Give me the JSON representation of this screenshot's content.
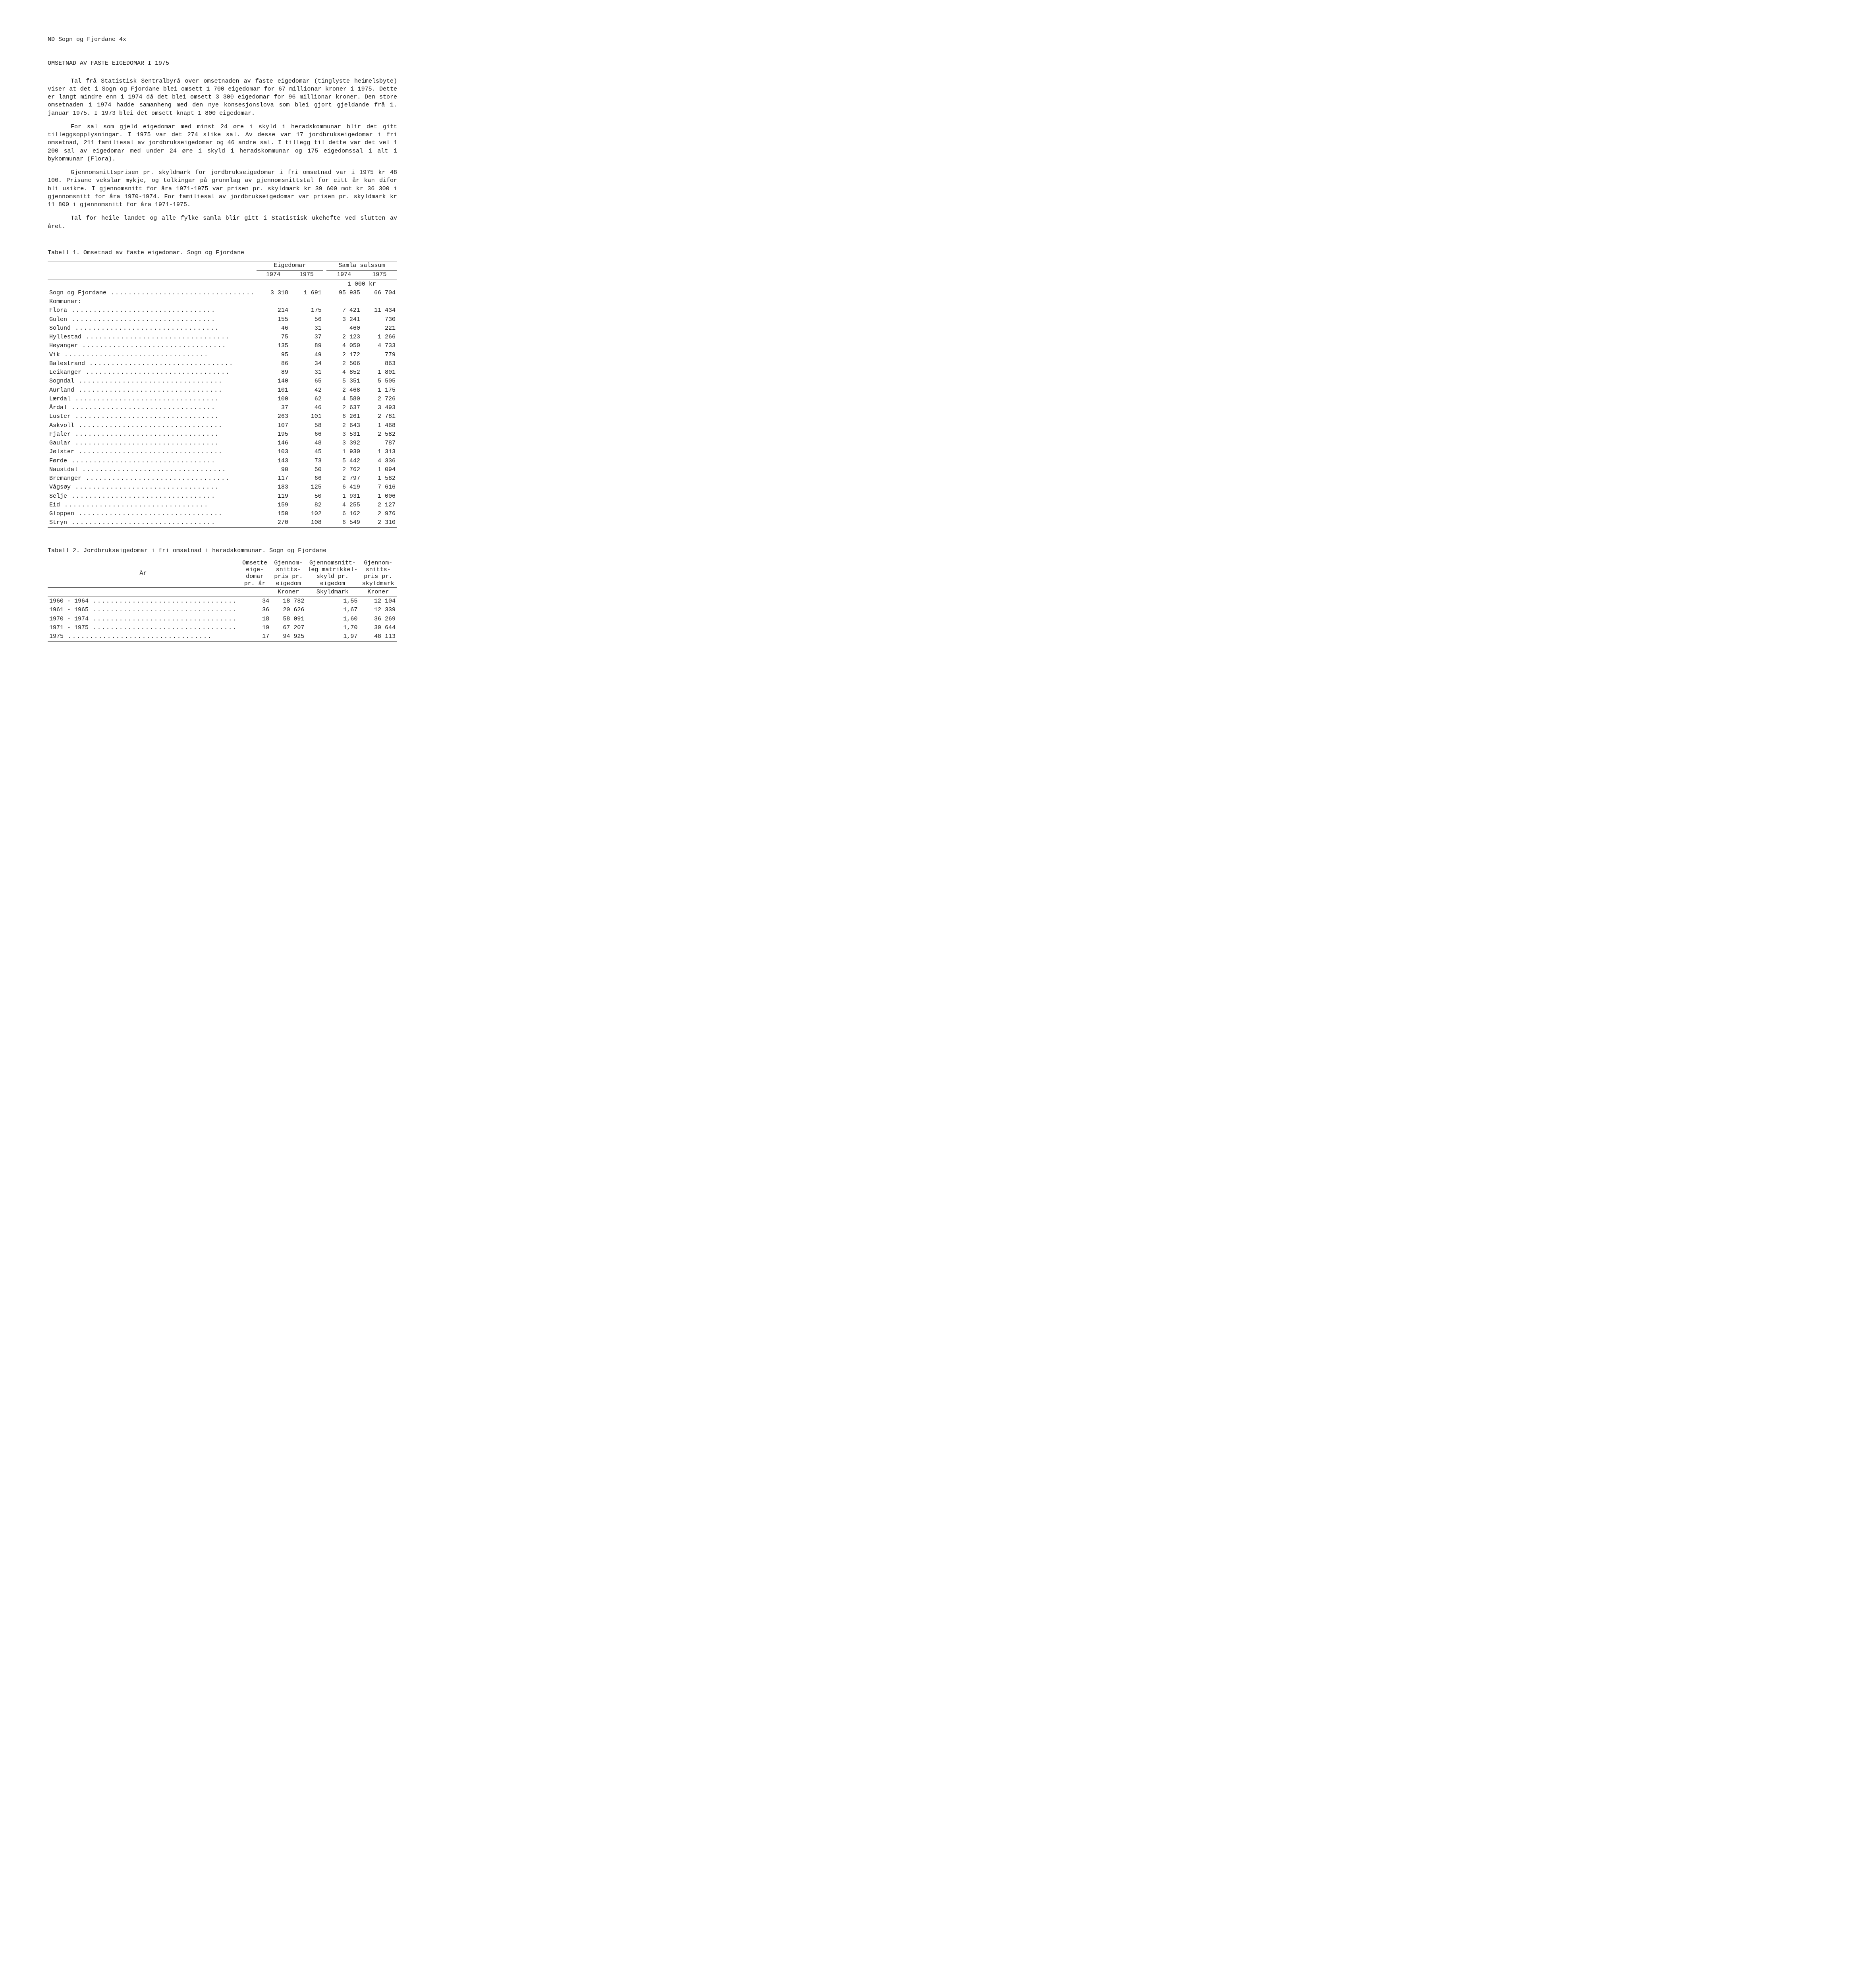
{
  "header": "ND Sogn og Fjordane 4x",
  "title": "OMSETNAD AV FASTE EIGEDOMAR I 1975",
  "paragraphs": [
    "Tal frå Statistisk Sentralbyrå over omsetnaden av faste eigedomar (tinglyste heimelsbyte) viser at det i Sogn og Fjordane blei omsett 1 700 eigedomar for 67 millionar kroner i 1975.  Dette er langt mindre enn i 1974 då det blei omsett 3 300 eigedomar for 96 millionar kroner.  Den store omsetnaden i 1974 hadde samanheng med den nye konsesjonslova som blei gjort gjeldande frå 1. januar 1975.  I 1973 blei det omsett knapt 1 800 eigedomar.",
    "For sal som gjeld eigedomar med minst 24 øre i skyld i heradskommunar blir det gitt tilleggsopplysningar.  I 1975 var det 274 slike sal.  Av desse var 17 jordbrukseigedomar i fri omsetnad, 211 familiesal av jordbrukseigedomar og 46 andre sal.  I tillegg til dette var det vel 1 200 sal av eigedomar med under 24 øre i skyld i heradskommunar og 175 eigedomssal i alt i bykommunar (Flora).",
    "Gjennomsnittsprisen pr. skyldmark for jordbrukseigedomar i fri omsetnad var i 1975 kr 48 100.  Prisane vekslar mykje, og tolkingar på grunnlag av gjennomsnittstal for eitt år kan difor bli usikre.  I gjennomsnitt for åra 1971-1975 var prisen pr. skyldmark kr 39 600 mot kr 36 300 i gjennomsnitt for åra 1970-1974.  For familiesal av jordbrukseigedomar var prisen pr. skyldmark kr 11 800 i gjennomsnitt for åra 1971-1975.",
    "Tal for heile landet og alle fylke samla blir gitt i Statistisk ukehefte ved slutten av året."
  ],
  "table1": {
    "caption": "Tabell 1.  Omsetnad av faste eigedomar.  Sogn og Fjordane",
    "group_headers": [
      "Eigedomar",
      "Samla salssum"
    ],
    "year_headers": [
      "1974",
      "1975",
      "1974",
      "1975"
    ],
    "unit": "1 000 kr",
    "county_row": {
      "label": "Sogn og Fjordane",
      "v": [
        "3 318",
        "1 691",
        "95 935",
        "66 704"
      ]
    },
    "subhead": "Kommunar:",
    "rows": [
      {
        "label": "Flora",
        "v": [
          "214",
          "175",
          "7 421",
          "11 434"
        ]
      },
      {
        "label": "Gulen",
        "v": [
          "155",
          "56",
          "3 241",
          "730"
        ]
      },
      {
        "label": "Solund",
        "v": [
          "46",
          "31",
          "460",
          "221"
        ]
      },
      {
        "label": "Hyllestad",
        "v": [
          "75",
          "37",
          "2 123",
          "1 266"
        ]
      },
      {
        "label": "Høyanger",
        "v": [
          "135",
          "89",
          "4 050",
          "4 733"
        ]
      },
      {
        "label": "Vik",
        "v": [
          "95",
          "49",
          "2 172",
          "779"
        ]
      },
      {
        "label": "Balestrand",
        "v": [
          "86",
          "34",
          "2 506",
          "863"
        ]
      },
      {
        "label": "Leikanger",
        "v": [
          "89",
          "31",
          "4 852",
          "1 801"
        ]
      },
      {
        "label": "Sogndal",
        "v": [
          "140",
          "65",
          "5 351",
          "5 505"
        ]
      },
      {
        "label": "Aurland",
        "v": [
          "101",
          "42",
          "2 468",
          "1 175"
        ]
      },
      {
        "label": "Lærdal",
        "v": [
          "100",
          "62",
          "4 580",
          "2 726"
        ]
      },
      {
        "label": "Årdal",
        "v": [
          "37",
          "46",
          "2 637",
          "3 493"
        ]
      },
      {
        "label": "Luster",
        "v": [
          "263",
          "101",
          "6 261",
          "2 781"
        ]
      },
      {
        "label": "Askvoll",
        "v": [
          "107",
          "58",
          "2 643",
          "1 468"
        ]
      },
      {
        "label": "Fjaler",
        "v": [
          "195",
          "66",
          "3 531",
          "2 582"
        ]
      },
      {
        "label": "Gaular",
        "v": [
          "146",
          "48",
          "3 392",
          "787"
        ]
      },
      {
        "label": "Jølster",
        "v": [
          "103",
          "45",
          "1 930",
          "1 313"
        ]
      },
      {
        "label": "Førde",
        "v": [
          "143",
          "73",
          "5 442",
          "4 336"
        ]
      },
      {
        "label": "Naustdal",
        "v": [
          "90",
          "50",
          "2 762",
          "1 094"
        ]
      },
      {
        "label": "Bremanger",
        "v": [
          "117",
          "66",
          "2 797",
          "1 582"
        ]
      },
      {
        "label": "Vågsøy",
        "v": [
          "183",
          "125",
          "6 419",
          "7 616"
        ]
      },
      {
        "label": "Selje",
        "v": [
          "119",
          "50",
          "1 931",
          "1 006"
        ]
      },
      {
        "label": "Eid",
        "v": [
          "159",
          "82",
          "4 255",
          "2 127"
        ]
      },
      {
        "label": "Gloppen",
        "v": [
          "150",
          "102",
          "6 162",
          "2 976"
        ]
      },
      {
        "label": "Stryn",
        "v": [
          "270",
          "108",
          "6 549",
          "2 310"
        ]
      }
    ]
  },
  "table2": {
    "caption": "Tabell 2.  Jordbrukseigedomar i fri omsetnad i heradskommunar.  Sogn og Fjordane",
    "col_labels": {
      "year": "År",
      "c1": "Omsette\neige-\ndomar\npr. år",
      "c2": "Gjennom-\nsnitts-\npris pr.\neigedom",
      "c3": "Gjennomsnitt-\nleg matrikkel-\nskyld pr.\neigedom",
      "c4": "Gjennom-\nsnitts-\npris pr.\nskyldmark"
    },
    "units": [
      "",
      "Kroner",
      "Skyldmark",
      "Kroner"
    ],
    "rows": [
      {
        "label": "1960 - 1964",
        "v": [
          "34",
          "18 782",
          "1,55",
          "12 104"
        ]
      },
      {
        "label": "1961 - 1965",
        "v": [
          "36",
          "20 626",
          "1,67",
          "12 339"
        ]
      },
      {
        "label": "1970 - 1974",
        "v": [
          "18",
          "58 091",
          "1,60",
          "36 269"
        ]
      },
      {
        "label": "1971 - 1975",
        "v": [
          "19",
          "67 207",
          "1,70",
          "39 644"
        ]
      },
      {
        "label": "1975",
        "v": [
          "17",
          "94 925",
          "1,97",
          "48 113"
        ]
      }
    ]
  }
}
